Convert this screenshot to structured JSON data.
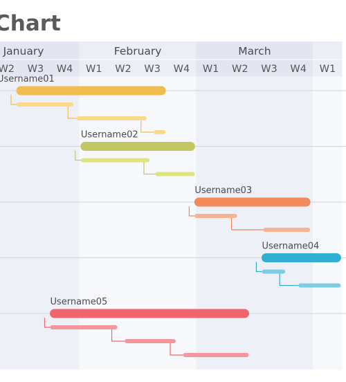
{
  "chart_data": {
    "type": "gantt",
    "title": "Chart",
    "months": [
      {
        "label": "January",
        "weeks": [
          "W2",
          "W3",
          "W4"
        ]
      },
      {
        "label": "February",
        "weeks": [
          "W1",
          "W2",
          "W3",
          "W4"
        ]
      },
      {
        "label": "March",
        "weeks": [
          "W1",
          "W2",
          "W3",
          "W4"
        ]
      },
      {
        "label": "",
        "weeks": [
          "W1"
        ]
      }
    ],
    "x_unit": "week index (1.0 = start of January W2)",
    "xlim": [
      0.97,
      12.0
    ],
    "groups": [
      {
        "name": "Username01",
        "color": "#f2bd4f",
        "light_color": "#fcd98a",
        "main": [
          0.9,
          6.0
        ],
        "tasks": [
          [
            0.9,
            2.85
          ],
          [
            2.95,
            5.35
          ],
          [
            5.6,
            6.0
          ]
        ]
      },
      {
        "name": "Username02",
        "color": "#c4c862",
        "light_color": "#dde57e",
        "main": [
          3.1,
          7.0
        ],
        "tasks": [
          [
            3.1,
            5.45
          ],
          [
            5.65,
            7.0
          ]
        ]
      },
      {
        "name": "Username03",
        "color": "#f28a5a",
        "light_color": "#f6b293",
        "main": [
          7.0,
          10.95
        ],
        "tasks": [
          [
            7.0,
            8.45
          ],
          [
            9.35,
            10.95
          ]
        ]
      },
      {
        "name": "Username04",
        "color": "#31aed4",
        "light_color": "#7fcde3",
        "main": [
          9.3,
          12.0
        ],
        "tasks": [
          [
            9.3,
            10.1
          ],
          [
            10.55,
            12.0
          ]
        ]
      },
      {
        "name": "Username05",
        "color": "#f2636e",
        "light_color": "#f6959b",
        "main": [
          2.05,
          8.85
        ],
        "tasks": [
          [
            2.05,
            4.35
          ],
          [
            4.6,
            6.35
          ],
          [
            6.6,
            8.85
          ]
        ]
      }
    ],
    "colors": {
      "header_bg": "#e8ebf4",
      "band_a": "#eef0f8",
      "band_b": "#f7f8fc",
      "gridline": "#d2d5dc",
      "connector_default": "#f0b04a"
    }
  }
}
